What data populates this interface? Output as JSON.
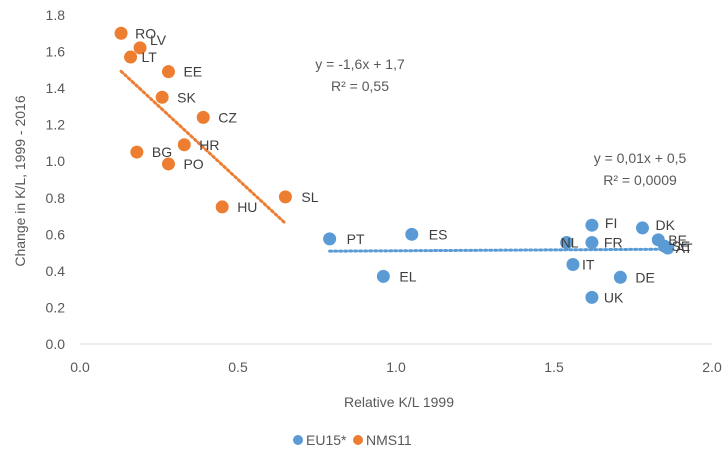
{
  "chart_data": {
    "type": "scatter",
    "xlabel": "Relative K/L 1999",
    "ylabel": "Change in K/L, 1999 - 2016",
    "xlim": [
      0,
      2
    ],
    "ylim": [
      0,
      1.8
    ],
    "x_ticks": [
      "0.0",
      "0.5",
      "1.0",
      "1.5",
      "2.0"
    ],
    "y_ticks": [
      "0.0",
      "0.2",
      "0.4",
      "0.6",
      "0.8",
      "1.0",
      "1.2",
      "1.4",
      "1.6",
      "1.8"
    ],
    "grid": false,
    "legend_position": "bottom",
    "series": [
      {
        "name": "EU15*",
        "color": "#5b9bd5",
        "points": [
          {
            "label": "PT",
            "x": 0.79,
            "y": 0.575
          },
          {
            "label": "ES",
            "x": 1.05,
            "y": 0.6
          },
          {
            "label": "EL",
            "x": 0.96,
            "y": 0.37
          },
          {
            "label": "FI",
            "x": 1.62,
            "y": 0.65
          },
          {
            "label": "NL",
            "x": 1.54,
            "y": 0.555
          },
          {
            "label": "FR",
            "x": 1.62,
            "y": 0.555
          },
          {
            "label": "IT",
            "x": 1.56,
            "y": 0.435
          },
          {
            "label": "DK",
            "x": 1.78,
            "y": 0.635
          },
          {
            "label": "BE",
            "x": 1.83,
            "y": 0.57
          },
          {
            "label": "AT",
            "x": 1.86,
            "y": 0.525
          },
          {
            "label": "SE",
            "x": 1.85,
            "y": 0.535
          },
          {
            "label": "DE",
            "x": 1.71,
            "y": 0.365
          },
          {
            "label": "UK",
            "x": 1.62,
            "y": 0.255
          }
        ],
        "trendline": {
          "slope": 0.01,
          "intercept": 0.5,
          "x_range": [
            0.79,
            1.86
          ]
        }
      },
      {
        "name": "NMS11",
        "color": "#ed7d31",
        "points": [
          {
            "label": "RO",
            "x": 0.13,
            "y": 1.7
          },
          {
            "label": "LV",
            "x": 0.19,
            "y": 1.62
          },
          {
            "label": "LT",
            "x": 0.16,
            "y": 1.57
          },
          {
            "label": "EE",
            "x": 0.28,
            "y": 1.49
          },
          {
            "label": "SK",
            "x": 0.26,
            "y": 1.35
          },
          {
            "label": "CZ",
            "x": 0.39,
            "y": 1.24
          },
          {
            "label": "HR",
            "x": 0.33,
            "y": 1.09
          },
          {
            "label": "BG",
            "x": 0.18,
            "y": 1.05
          },
          {
            "label": "PO",
            "x": 0.28,
            "y": 0.985
          },
          {
            "label": "SL",
            "x": 0.65,
            "y": 0.805
          },
          {
            "label": "HU",
            "x": 0.45,
            "y": 0.75
          }
        ],
        "trendline": {
          "slope": -1.6,
          "intercept": 1.7,
          "x_range": [
            0.13,
            0.65
          ]
        }
      }
    ],
    "annotations": [
      {
        "lines": [
          "y = -1,6x + 1,7",
          "R² = 0,55"
        ]
      },
      {
        "lines": [
          "y = 0,01x + 0,5",
          "R² = 0,0009"
        ]
      }
    ]
  }
}
